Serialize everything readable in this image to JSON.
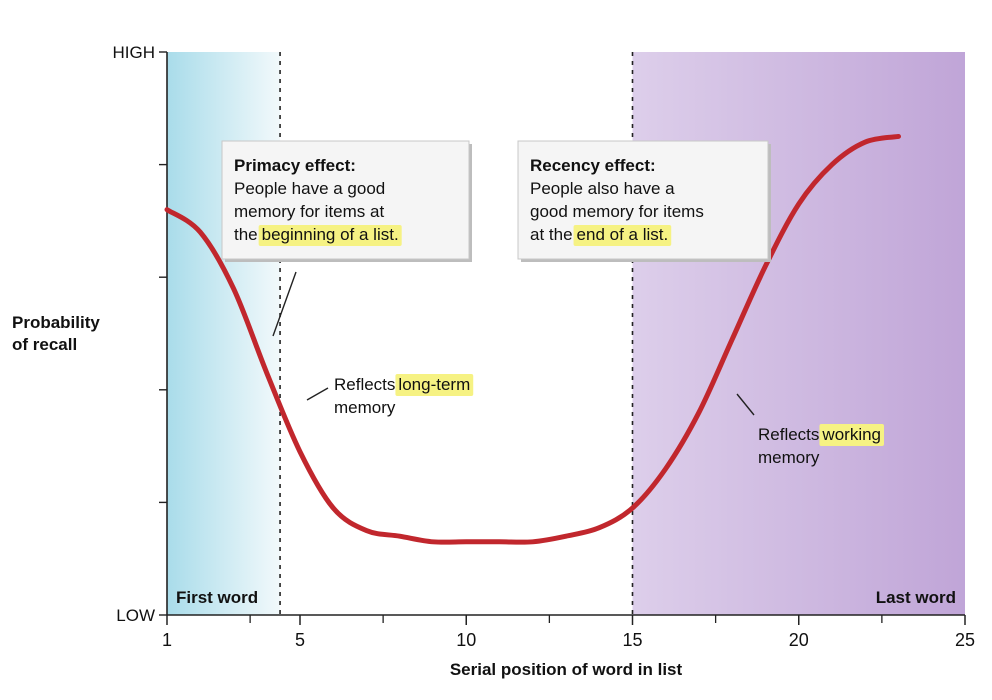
{
  "chart_data": {
    "type": "line",
    "title": "",
    "xlabel": "Serial position of word in list",
    "ylabel_lines": [
      "Probability",
      "of recall"
    ],
    "xlim": [
      1,
      25
    ],
    "x_ticks": [
      1,
      5,
      10,
      15,
      20,
      25
    ],
    "y_tick_labels": {
      "top": "HIGH",
      "bottom": "LOW"
    },
    "grid": false,
    "series": [
      {
        "x": [
          1,
          2,
          3,
          4,
          5,
          6,
          7,
          8,
          9,
          10,
          11,
          12,
          13,
          14,
          15,
          16,
          17,
          18,
          19,
          20,
          21,
          22,
          23
        ],
        "y": [
          0.72,
          0.68,
          0.58,
          0.43,
          0.29,
          0.19,
          0.15,
          0.14,
          0.13,
          0.13,
          0.13,
          0.13,
          0.14,
          0.155,
          0.19,
          0.26,
          0.36,
          0.49,
          0.62,
          0.73,
          0.8,
          0.84,
          0.85
        ],
        "color": "#c1272d"
      }
    ],
    "ylim": [
      0,
      1
    ],
    "vertical_lines": [
      {
        "x": 4.4
      },
      {
        "x": 15
      }
    ],
    "shaded_regions": [
      {
        "from": 1,
        "to": 4.4,
        "color": "#bfe6ef"
      },
      {
        "from": 15,
        "to": 25,
        "color": "#c9b3dd"
      }
    ],
    "corner_labels": {
      "first": "First word",
      "last": "Last word"
    },
    "callouts": {
      "primacy": {
        "title": "Primacy effect:",
        "lines": [
          "People have a good",
          "memory for items at",
          "the "
        ],
        "highlight": "beginning of a list."
      },
      "recency": {
        "title": "Recency effect:",
        "lines": [
          "People also have a",
          "good memory for items",
          "at the "
        ],
        "highlight": "end of a list."
      }
    },
    "annotations": {
      "long_term": {
        "prefix": "Reflects ",
        "highlight": "long-term",
        "line2": "memory"
      },
      "working": {
        "prefix": "Reflects ",
        "highlight": "working",
        "line2": "memory"
      }
    },
    "colors": {
      "highlight": "#f6f283",
      "curve": "#c1272d"
    }
  }
}
